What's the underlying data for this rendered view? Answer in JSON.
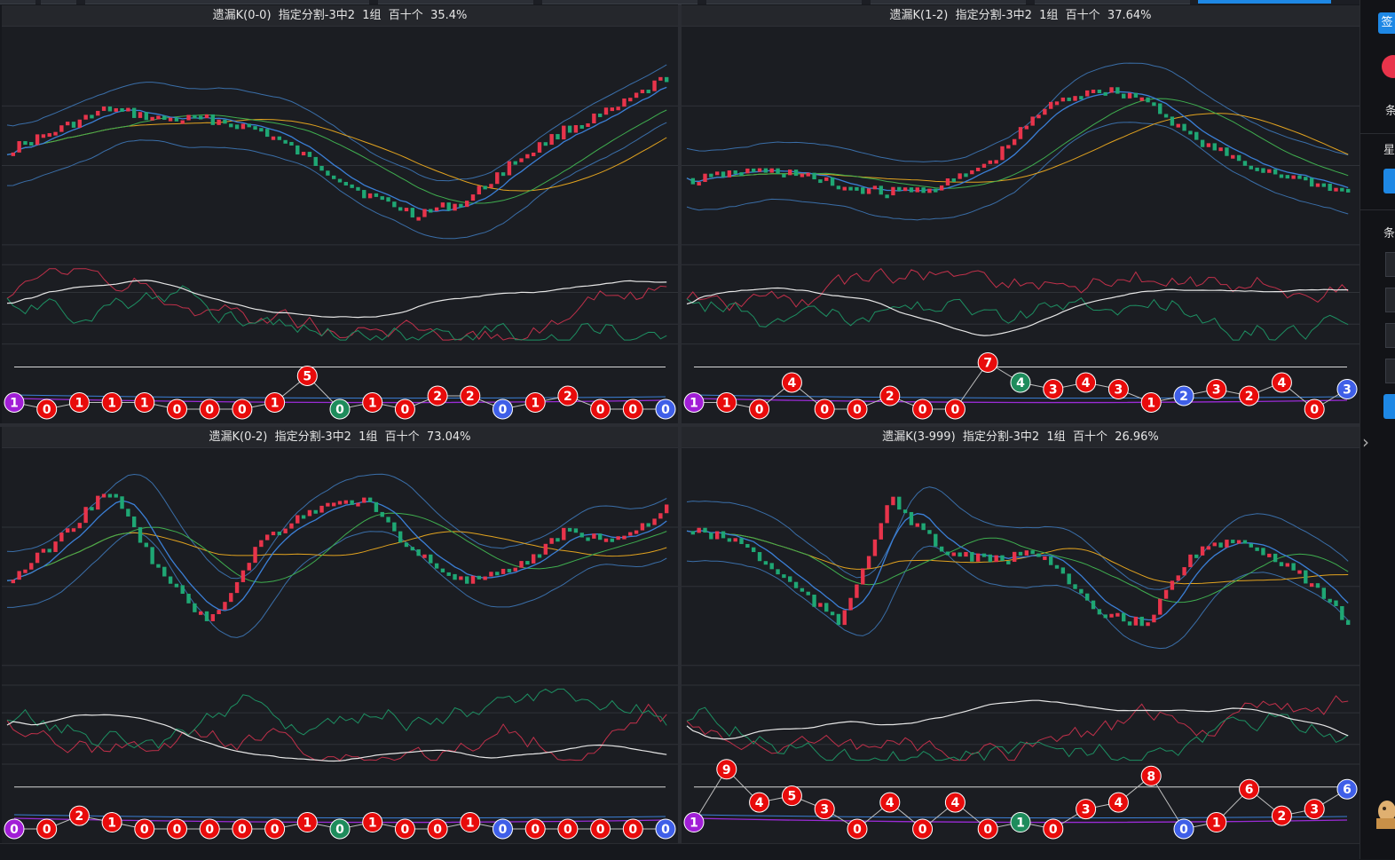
{
  "colors": {
    "up": "#e8344b",
    "down": "#1fa774",
    "ma_blue": "#3b7fd6",
    "ma_green": "#3fae4f",
    "ma_orange": "#e2a31f",
    "boll": "#3a6ea8",
    "white_line": "#e6e6e6",
    "ball_red": "#e80b0b",
    "ball_green": "#1e8c5c",
    "ball_blue": "#3f5fe8",
    "ball_purple": "#a11ed6"
  },
  "window": {
    "right_sidebar": {
      "items": [
        {
          "name": "blue-tab-button",
          "text": "签"
        },
        {
          "name": "red-circle-indicator",
          "text": ""
        },
        {
          "name": "label-1",
          "text": "条"
        },
        {
          "name": "label-2",
          "text": "星"
        },
        {
          "name": "blue-button-1",
          "text": ""
        },
        {
          "name": "label-3",
          "text": "条"
        },
        {
          "name": "dark-square-1",
          "text": ""
        },
        {
          "name": "dark-square-2",
          "text": ""
        },
        {
          "name": "dark-square-3",
          "text": ""
        },
        {
          "name": "dark-square-4",
          "text": ""
        },
        {
          "name": "blue-button-2",
          "text": ""
        },
        {
          "name": "collapse-arrow-icon",
          "text": "›"
        },
        {
          "name": "mascot-icon",
          "text": ""
        }
      ]
    }
  },
  "panels": [
    {
      "title": "遗漏K(0-0)  指定分割-3中2  1组  百十个  35.4%",
      "balls": [
        {
          "v": "1",
          "c": "purple"
        },
        {
          "v": "0",
          "c": "red"
        },
        {
          "v": "1",
          "c": "red"
        },
        {
          "v": "1",
          "c": "red"
        },
        {
          "v": "1",
          "c": "red"
        },
        {
          "v": "0",
          "c": "red"
        },
        {
          "v": "0",
          "c": "red"
        },
        {
          "v": "0",
          "c": "red"
        },
        {
          "v": "1",
          "c": "red"
        },
        {
          "v": "5",
          "c": "red"
        },
        {
          "v": "0",
          "c": "green"
        },
        {
          "v": "1",
          "c": "red"
        },
        {
          "v": "0",
          "c": "red"
        },
        {
          "v": "2",
          "c": "red"
        },
        {
          "v": "2",
          "c": "red"
        },
        {
          "v": "0",
          "c": "blue"
        },
        {
          "v": "1",
          "c": "red"
        },
        {
          "v": "2",
          "c": "red"
        },
        {
          "v": "0",
          "c": "red"
        },
        {
          "v": "0",
          "c": "red"
        },
        {
          "v": "0",
          "c": "blue"
        }
      ]
    },
    {
      "title": "遗漏K(1-2)  指定分割-3中2  1组  百十个  37.64%",
      "balls": [
        {
          "v": "1",
          "c": "purple"
        },
        {
          "v": "1",
          "c": "red"
        },
        {
          "v": "0",
          "c": "red"
        },
        {
          "v": "4",
          "c": "red"
        },
        {
          "v": "0",
          "c": "red"
        },
        {
          "v": "0",
          "c": "red"
        },
        {
          "v": "2",
          "c": "red"
        },
        {
          "v": "0",
          "c": "red"
        },
        {
          "v": "0",
          "c": "red"
        },
        {
          "v": "7",
          "c": "red"
        },
        {
          "v": "4",
          "c": "green"
        },
        {
          "v": "3",
          "c": "red"
        },
        {
          "v": "4",
          "c": "red"
        },
        {
          "v": "3",
          "c": "red"
        },
        {
          "v": "1",
          "c": "red"
        },
        {
          "v": "2",
          "c": "blue"
        },
        {
          "v": "3",
          "c": "red"
        },
        {
          "v": "2",
          "c": "red"
        },
        {
          "v": "4",
          "c": "red"
        },
        {
          "v": "0",
          "c": "red"
        },
        {
          "v": "3",
          "c": "blue"
        }
      ]
    },
    {
      "title": "遗漏K(0-2)  指定分割-3中2  1组  百十个  73.04%",
      "balls": [
        {
          "v": "0",
          "c": "purple"
        },
        {
          "v": "0",
          "c": "red"
        },
        {
          "v": "2",
          "c": "red"
        },
        {
          "v": "1",
          "c": "red"
        },
        {
          "v": "0",
          "c": "red"
        },
        {
          "v": "0",
          "c": "red"
        },
        {
          "v": "0",
          "c": "red"
        },
        {
          "v": "0",
          "c": "red"
        },
        {
          "v": "0",
          "c": "red"
        },
        {
          "v": "1",
          "c": "red"
        },
        {
          "v": "0",
          "c": "green"
        },
        {
          "v": "1",
          "c": "red"
        },
        {
          "v": "0",
          "c": "red"
        },
        {
          "v": "0",
          "c": "red"
        },
        {
          "v": "1",
          "c": "red"
        },
        {
          "v": "0",
          "c": "blue"
        },
        {
          "v": "0",
          "c": "red"
        },
        {
          "v": "0",
          "c": "red"
        },
        {
          "v": "0",
          "c": "red"
        },
        {
          "v": "0",
          "c": "red"
        },
        {
          "v": "0",
          "c": "blue"
        }
      ]
    },
    {
      "title": "遗漏K(3-999)  指定分割-3中2  1组  百十个  26.96%",
      "balls": [
        {
          "v": "1",
          "c": "purple"
        },
        {
          "v": "9",
          "c": "red"
        },
        {
          "v": "4",
          "c": "red"
        },
        {
          "v": "5",
          "c": "red"
        },
        {
          "v": "3",
          "c": "red"
        },
        {
          "v": "0",
          "c": "red"
        },
        {
          "v": "4",
          "c": "red"
        },
        {
          "v": "0",
          "c": "red"
        },
        {
          "v": "4",
          "c": "red"
        },
        {
          "v": "0",
          "c": "red"
        },
        {
          "v": "1",
          "c": "green"
        },
        {
          "v": "0",
          "c": "red"
        },
        {
          "v": "3",
          "c": "red"
        },
        {
          "v": "4",
          "c": "red"
        },
        {
          "v": "8",
          "c": "red"
        },
        {
          "v": "0",
          "c": "blue"
        },
        {
          "v": "1",
          "c": "red"
        },
        {
          "v": "6",
          "c": "red"
        },
        {
          "v": "2",
          "c": "red"
        },
        {
          "v": "3",
          "c": "red"
        },
        {
          "v": "6",
          "c": "blue"
        }
      ]
    }
  ]
}
